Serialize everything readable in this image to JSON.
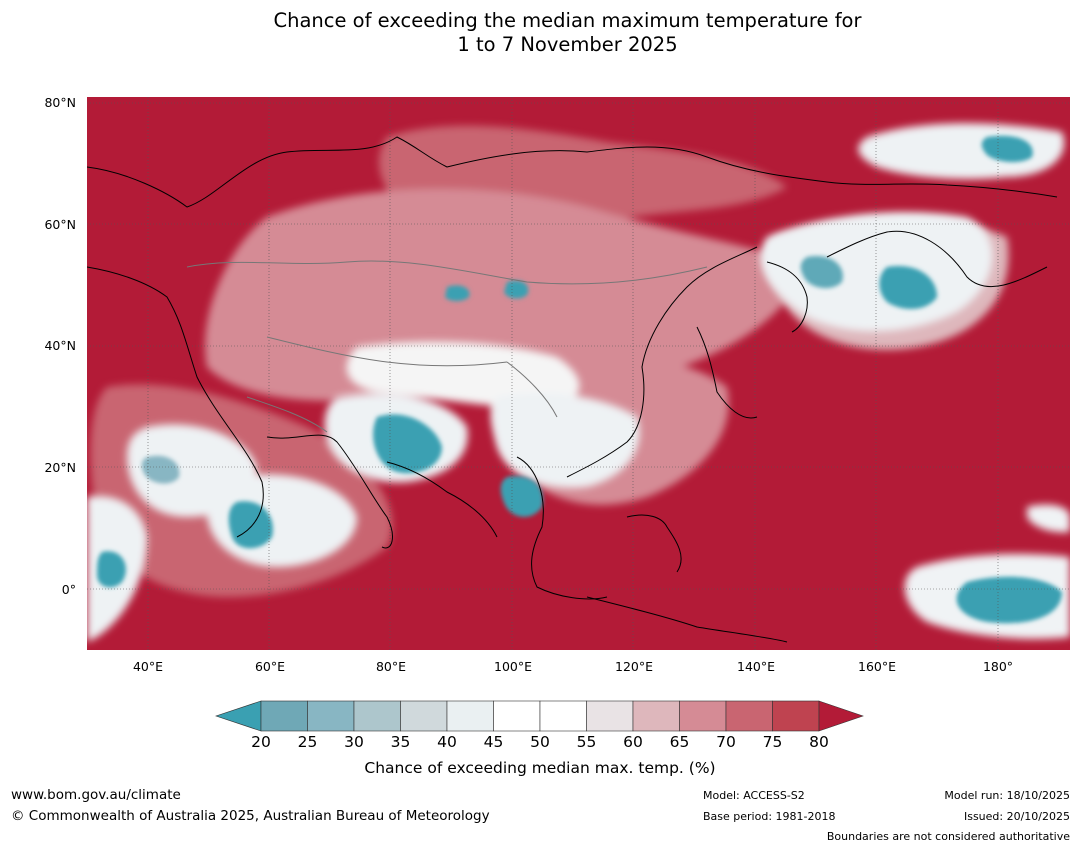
{
  "title": {
    "line1": "Chance of exceeding the median maximum temperature for",
    "line2": "1 to 7 November 2025"
  },
  "axes": {
    "lat_labels": [
      "80°N",
      "60°N",
      "40°N",
      "20°N",
      "0°"
    ],
    "lon_labels": [
      "40°E",
      "60°E",
      "80°E",
      "100°E",
      "120°E",
      "140°E",
      "160°E",
      "180°"
    ]
  },
  "map": {
    "region": "Asia",
    "lon_range": [
      30,
      192
    ],
    "lat_range": [
      -10,
      80
    ]
  },
  "colorbar": {
    "ticks": [
      "20",
      "25",
      "30",
      "35",
      "40",
      "45",
      "50",
      "55",
      "60",
      "65",
      "70",
      "75",
      "80"
    ],
    "colors": [
      "#3aa0b2",
      "#6fa8b6",
      "#88b6c3",
      "#adc6cc",
      "#d0d9dc",
      "#eaf0f2",
      "#ffffff",
      "#ffffff",
      "#e9e3e5",
      "#deb7bc",
      "#d58b95",
      "#c96571",
      "#bf4350",
      "#b31b37"
    ],
    "label": "Chance of exceeding median max. temp. (%)"
  },
  "footer": {
    "website": "www.bom.gov.au/climate",
    "copyright": "© Commonwealth of Australia 2025, Australian Bureau of Meteorology",
    "model": "Model: ACCESS-S2",
    "base_period": "Base period: 1981-2018",
    "model_run": "Model run: 18/10/2025",
    "issued": "Issued: 20/10/2025",
    "disclaimer": "Boundaries are not considered authoritative"
  }
}
